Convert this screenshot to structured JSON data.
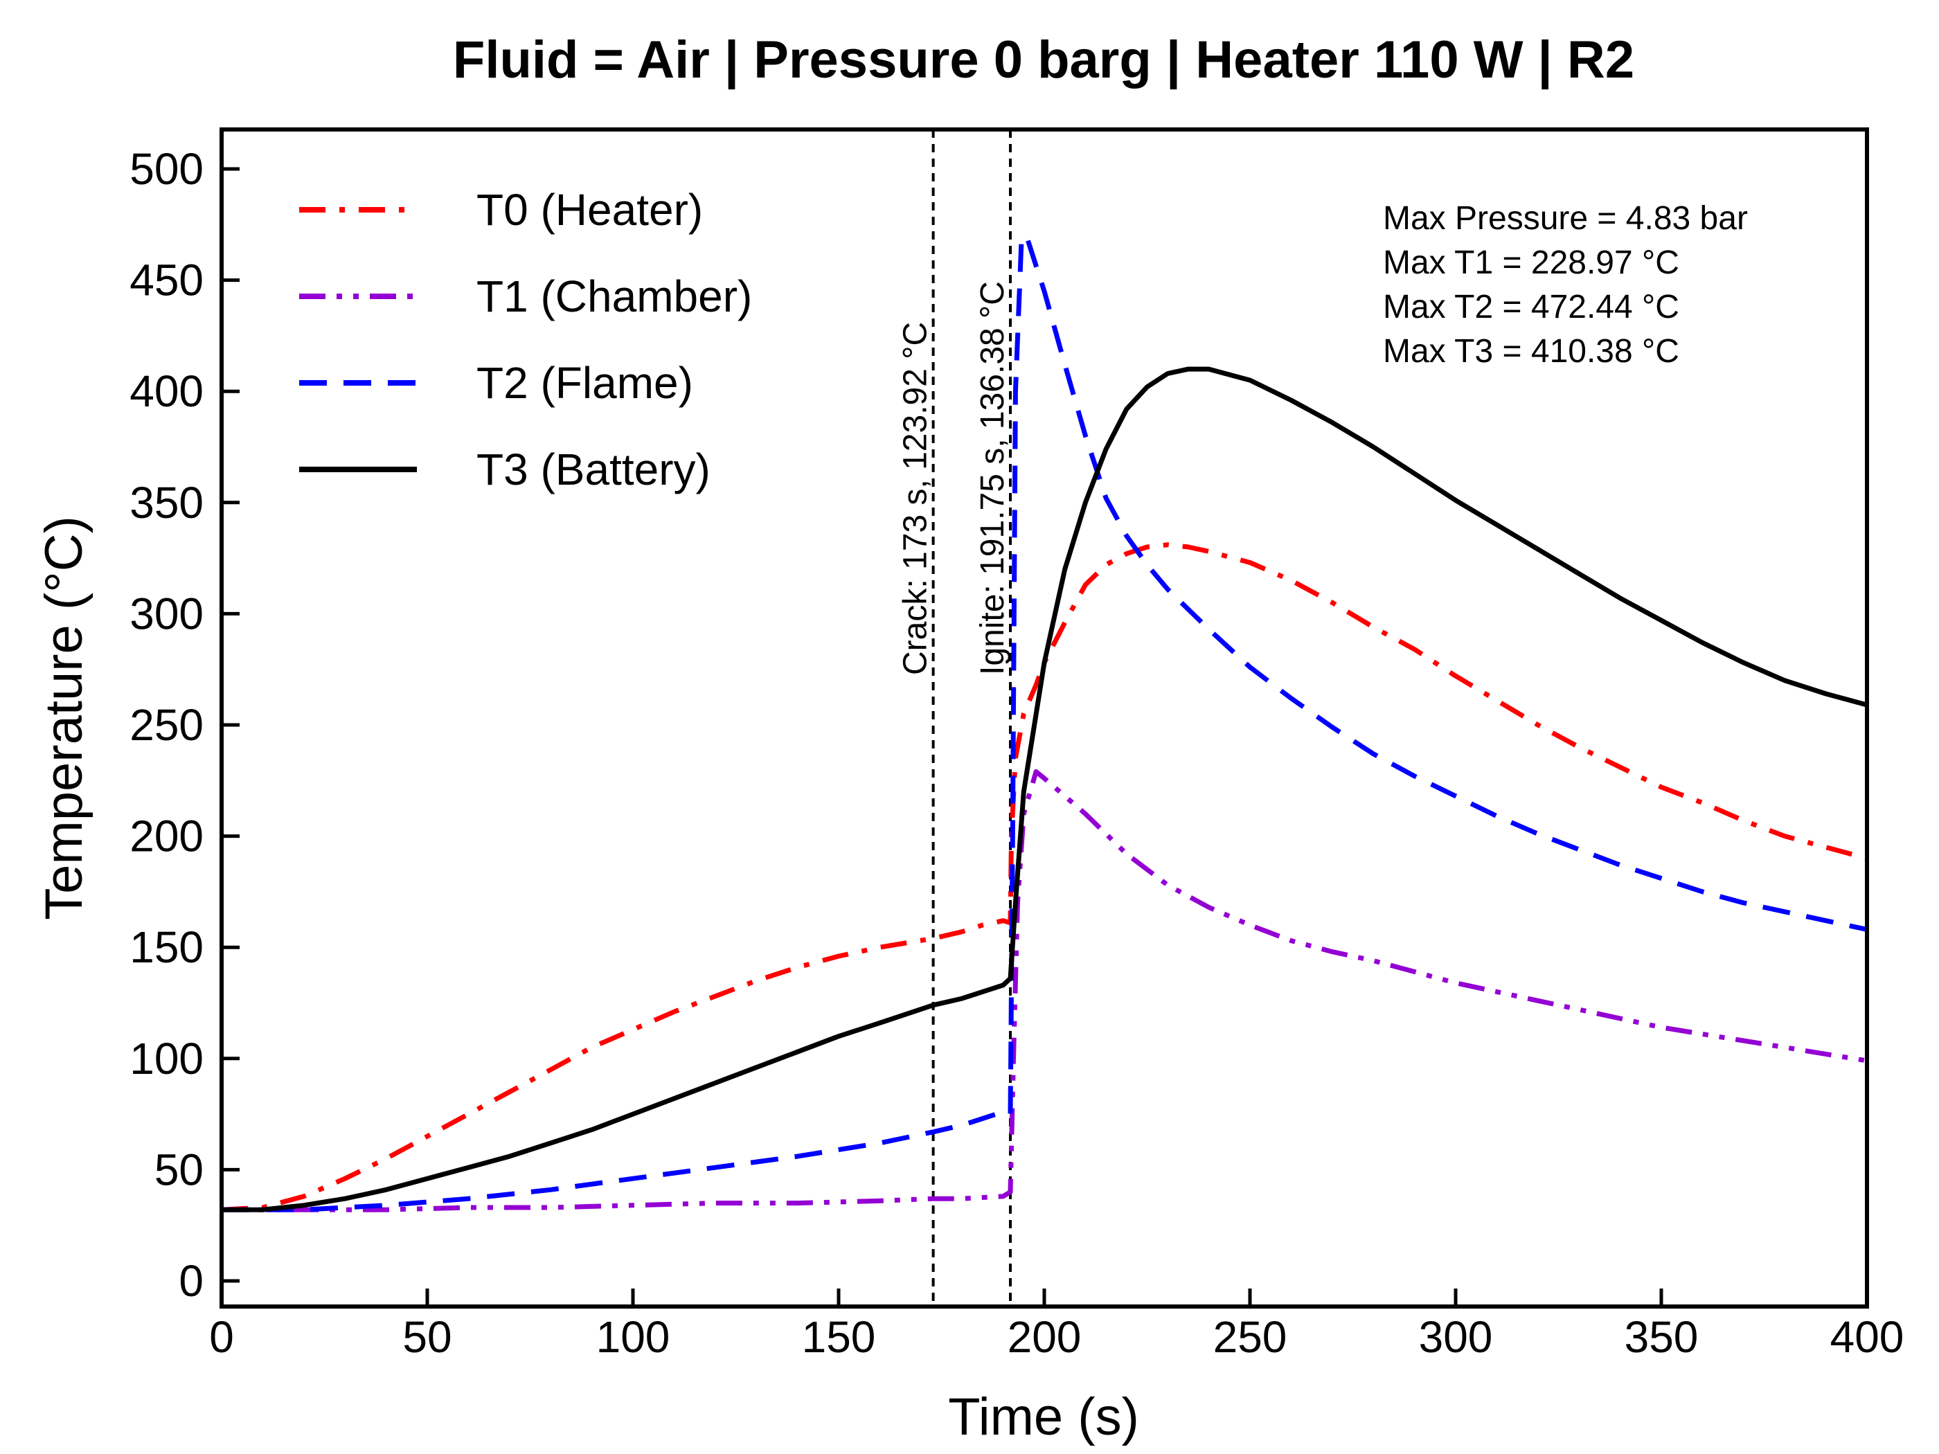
{
  "chart_data": {
    "type": "line",
    "title": "Fluid = Air | Pressure 0 barg | Heater 110 W | R2",
    "xlabel": "Time (s)",
    "ylabel": "Temperature (°C)",
    "xlim": [
      0,
      400
    ],
    "ylim": [
      -12,
      512
    ],
    "xticks": [
      0,
      50,
      100,
      150,
      200,
      250,
      300,
      350,
      400
    ],
    "yticks": [
      0,
      50,
      100,
      150,
      200,
      250,
      300,
      350,
      400,
      450,
      500
    ],
    "grid": false,
    "legend_position": "top-left",
    "annotations": [
      "Max Pressure = 4.83 bar",
      "Max T1 = 228.97 °C",
      "Max T2 = 472.44 °C",
      "Max T3 = 410.38 °C"
    ],
    "vertical_markers": [
      {
        "x": 173,
        "label": "Crack:  173  s,  123.92 °C"
      },
      {
        "x": 191.75,
        "label": "Ignite:  191.75  s,  136.38 °C"
      }
    ],
    "series": [
      {
        "name": "T0 (Heater)",
        "color": "#ff0000",
        "dash": "dashdot",
        "x": [
          0,
          10,
          20,
          30,
          40,
          50,
          60,
          70,
          80,
          90,
          100,
          110,
          120,
          130,
          140,
          150,
          160,
          173,
          180,
          185,
          190,
          191.75,
          192,
          193,
          195,
          198,
          200,
          205,
          210,
          215,
          220,
          225,
          230,
          235,
          240,
          250,
          260,
          270,
          280,
          290,
          300,
          310,
          320,
          330,
          340,
          350,
          360,
          370,
          380,
          390,
          400
        ],
        "y": [
          32,
          33,
          38,
          46,
          55,
          65,
          75,
          85,
          95,
          105,
          113,
          121,
          128,
          135,
          141,
          146,
          150,
          154,
          157,
          160,
          162,
          161,
          200,
          235,
          255,
          268,
          278,
          296,
          313,
          322,
          327,
          330,
          331,
          330,
          328,
          323,
          315,
          305,
          294,
          284,
          272,
          261,
          250,
          240,
          231,
          222,
          215,
          207,
          200,
          195,
          190
        ]
      },
      {
        "name": "T1 (Chamber)",
        "color": "#9400d3",
        "dash": "dashdotdot",
        "x": [
          0,
          20,
          40,
          60,
          80,
          100,
          120,
          140,
          160,
          173,
          180,
          190,
          191.75,
          192.5,
          193.5,
          195,
          198,
          200,
          210,
          220,
          230,
          240,
          250,
          260,
          270,
          280,
          290,
          300,
          310,
          320,
          330,
          340,
          350,
          360,
          370,
          380,
          390,
          400
        ],
        "y": [
          32,
          32,
          32,
          33,
          33,
          34,
          35,
          35,
          36,
          37,
          37,
          38,
          40,
          100,
          170,
          210,
          229,
          226,
          210,
          192,
          178,
          168,
          160,
          153,
          148,
          144,
          139,
          134,
          130,
          126,
          122,
          118,
          114,
          111,
          108,
          105,
          102,
          99
        ]
      },
      {
        "name": "T2 (Flame)",
        "color": "#0000ff",
        "dash": "dashed",
        "x": [
          0,
          20,
          40,
          60,
          80,
          100,
          120,
          140,
          160,
          173,
          180,
          185,
          190,
          191.75,
          192.3,
          193,
          194.5,
          196,
          200,
          205,
          210,
          215,
          220,
          225,
          230,
          240,
          250,
          260,
          270,
          280,
          290,
          300,
          310,
          320,
          330,
          340,
          350,
          360,
          370,
          380,
          390,
          400
        ],
        "y": [
          32,
          32,
          34,
          37,
          41,
          46,
          51,
          56,
          62,
          67,
          70,
          73,
          76,
          75,
          200,
          400,
          470,
          468,
          445,
          412,
          380,
          352,
          335,
          322,
          311,
          293,
          276,
          262,
          249,
          237,
          227,
          218,
          209,
          201,
          194,
          187,
          181,
          175,
          170,
          166,
          162,
          158
        ]
      },
      {
        "name": "T3 (Battery)",
        "color": "#000000",
        "dash": "solid",
        "x": [
          0,
          10,
          20,
          30,
          40,
          50,
          60,
          70,
          80,
          90,
          100,
          110,
          120,
          130,
          140,
          150,
          160,
          173,
          180,
          185,
          190,
          191.75,
          193,
          195,
          200,
          205,
          210,
          215,
          220,
          225,
          230,
          235,
          240,
          250,
          260,
          270,
          280,
          290,
          300,
          310,
          320,
          330,
          340,
          350,
          360,
          370,
          380,
          390,
          400
        ],
        "y": [
          32,
          32,
          34,
          37,
          41,
          46,
          51,
          56,
          62,
          68,
          75,
          82,
          89,
          96,
          103,
          110,
          116,
          124,
          127,
          130,
          133,
          136,
          170,
          220,
          278,
          320,
          350,
          374,
          392,
          402,
          408,
          410,
          410,
          405,
          396,
          386,
          375,
          363,
          351,
          340,
          329,
          318,
          307,
          297,
          287,
          278,
          270,
          264,
          259
        ]
      }
    ]
  }
}
